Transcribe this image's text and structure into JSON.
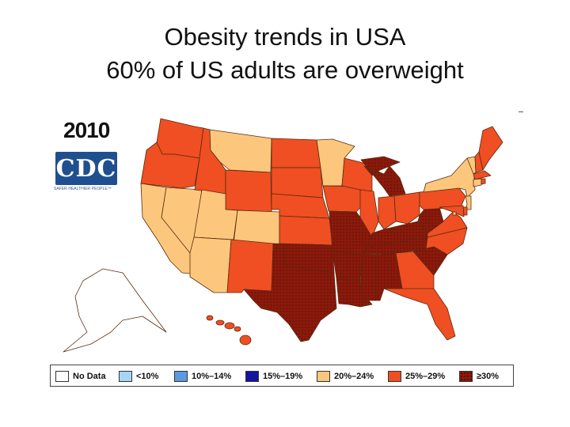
{
  "title": {
    "line1": "Obesity trends in USA",
    "line2": "60% of US adults are overweight"
  },
  "year": "2010",
  "logo": {
    "text": "CDC",
    "tagline": "SAFER·HEALTHIER·PEOPLE™"
  },
  "legend": [
    {
      "label": "No Data",
      "color": "#ffffff"
    },
    {
      "label": "<10%",
      "color": "#a6d6f5"
    },
    {
      "label": "10%–14%",
      "color": "#5a9ae0"
    },
    {
      "label": "15%–19%",
      "color": "#1414a0"
    },
    {
      "label": "20%–24%",
      "color": "#fcc77c"
    },
    {
      "label": "25%–29%",
      "color": "#ef4f22"
    },
    {
      "label": "≥30%",
      "color": "#8a1a0c"
    }
  ],
  "map": {
    "categories": {
      "20-24": "#fcc77c",
      "25-29": "#ef4f22",
      "30+": "#8a1a0c"
    },
    "states_20_24": [
      "CA",
      "NV",
      "UT",
      "AZ",
      "CO",
      "MT",
      "MN",
      "NY",
      "VT",
      "CT",
      "NJ",
      "DC"
    ],
    "states_25_29": [
      "WA",
      "OR",
      "ID",
      "WY",
      "NM",
      "ND",
      "SD",
      "NE",
      "KS",
      "IA",
      "WI",
      "IL",
      "IN",
      "OH",
      "PA",
      "VA",
      "NC",
      "GA",
      "FL",
      "ME",
      "NH",
      "MA",
      "RI",
      "DE",
      "MD",
      "HI"
    ],
    "states_30_plus": [
      "TX",
      "OK",
      "MO",
      "AR",
      "LA",
      "MS",
      "AL",
      "TN",
      "KY",
      "WV",
      "SC",
      "MI"
    ]
  }
}
